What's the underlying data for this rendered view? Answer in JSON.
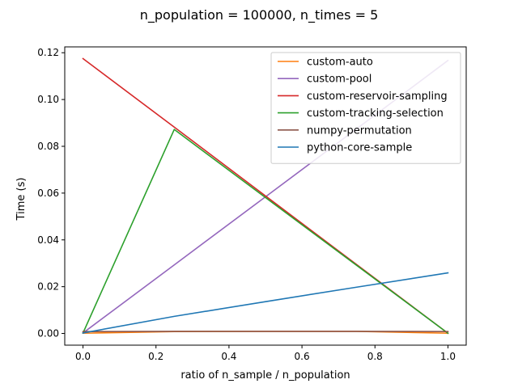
{
  "chart_data": {
    "type": "line",
    "title": "n_population = 100000, n_times = 5",
    "xlabel": "ratio of n_sample / n_population",
    "ylabel": "Time (s)",
    "xlim": [
      -0.05,
      1.05
    ],
    "ylim": [
      -0.005,
      0.1225
    ],
    "xticks": [
      0.0,
      0.2,
      0.4,
      0.6,
      0.8,
      1.0
    ],
    "xtick_labels": [
      "0.0",
      "0.2",
      "0.4",
      "0.6",
      "0.8",
      "1.0"
    ],
    "yticks": [
      0.0,
      0.02,
      0.04,
      0.06,
      0.08,
      0.1,
      0.12
    ],
    "ytick_labels": [
      "0.00",
      "0.02",
      "0.04",
      "0.06",
      "0.08",
      "0.10",
      "0.12"
    ],
    "grid": false,
    "legend_position": "top-right",
    "x": [
      0.0,
      0.25,
      0.5,
      0.75,
      1.0
    ],
    "series": [
      {
        "name": "custom-auto",
        "color": "#ff7f0e",
        "values": [
          0.0001,
          0.0008,
          0.0009,
          0.0009,
          0.0001
        ]
      },
      {
        "name": "custom-pool",
        "color": "#9467bd",
        "values": [
          0.0002,
          0.0293,
          0.0584,
          0.0875,
          0.1167
        ]
      },
      {
        "name": "custom-reservoir-sampling",
        "color": "#d62728",
        "values": [
          0.1175,
          0.0882,
          0.0588,
          0.0294,
          0.0001
        ]
      },
      {
        "name": "custom-tracking-selection",
        "color": "#2ca02c",
        "values": [
          0.0002,
          0.0872,
          0.0581,
          0.0291,
          0.0001
        ]
      },
      {
        "name": "numpy-permutation",
        "color": "#8c564b",
        "values": [
          0.0008,
          0.0009,
          0.0009,
          0.0009,
          0.0008
        ]
      },
      {
        "name": "python-core-sample",
        "color": "#1f77b4",
        "values": [
          0.0002,
          0.0073,
          0.0136,
          0.0198,
          0.0259
        ]
      }
    ]
  }
}
